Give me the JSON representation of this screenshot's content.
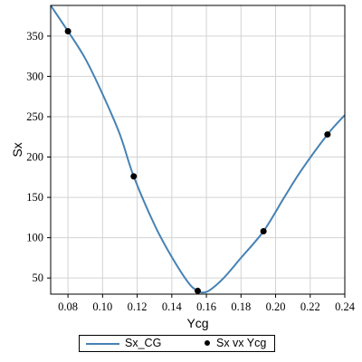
{
  "chart_data": {
    "type": "line",
    "xlabel": "Ycg",
    "ylabel": "Sx",
    "xlim": [
      0.07,
      0.24
    ],
    "ylim": [
      30,
      388
    ],
    "grid": true,
    "legend_position": "bottom",
    "xticks": [
      "0.08",
      "0.10",
      "0.12",
      "0.14",
      "0.16",
      "0.18",
      "0.20",
      "0.22",
      "0.24"
    ],
    "yticks": [
      "50",
      "100",
      "150",
      "200",
      "250",
      "300",
      "350"
    ],
    "series": [
      {
        "name": "Sx_CG",
        "style": "line",
        "color": "#4682b4",
        "x": [
          0.07,
          0.08,
          0.09,
          0.1,
          0.11,
          0.118,
          0.13,
          0.14,
          0.15,
          0.155,
          0.158,
          0.162,
          0.17,
          0.18,
          0.193,
          0.205,
          0.215,
          0.23,
          0.24
        ],
        "y": [
          388,
          356,
          322,
          278,
          228,
          176,
          116,
          76,
          43,
          34,
          32,
          35,
          50,
          75,
          108,
          150,
          184,
          228,
          252
        ]
      },
      {
        "name": "Sx vx Ycg",
        "style": "markers",
        "color": "#000000",
        "x": [
          0.08,
          0.118,
          0.155,
          0.193,
          0.23
        ],
        "y": [
          356,
          176,
          34,
          108,
          228
        ]
      }
    ]
  }
}
